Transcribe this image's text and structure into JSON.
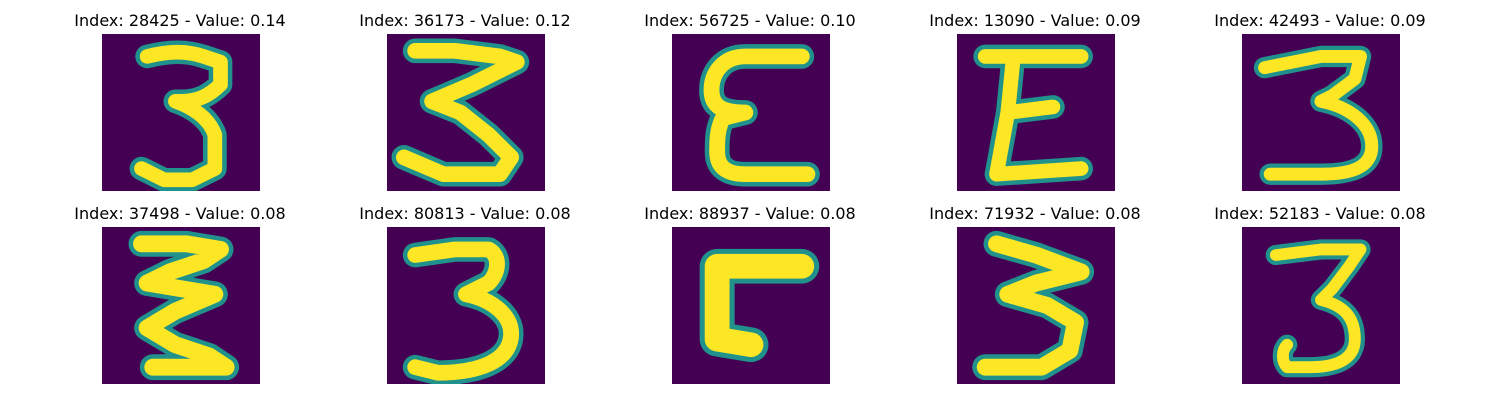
{
  "figure": {
    "colormap": {
      "background": "#440154",
      "edge_dark": "#31688e",
      "edge": "#21918c",
      "edge_light": "#5ec962",
      "ink": "#fde725"
    },
    "panels": [
      {
        "title": "Index: 28425 - Value: 0.14",
        "glyph": "three-narrow-icon"
      },
      {
        "title": "Index: 36173 - Value: 0.12",
        "glyph": "three-zigzag-icon"
      },
      {
        "title": "Index: 56725 - Value: 0.10",
        "glyph": "epsilon-icon"
      },
      {
        "title": "Index: 13090 - Value: 0.09",
        "glyph": "capital-e-icon"
      },
      {
        "title": "Index: 42493 - Value: 0.09",
        "glyph": "three-flat-top-icon"
      },
      {
        "title": "Index: 37498 - Value: 0.08",
        "glyph": "three-zigzag-bold-icon"
      },
      {
        "title": "Index: 80813 - Value: 0.08",
        "glyph": "three-round-icon"
      },
      {
        "title": "Index: 88937 - Value: 0.08",
        "glyph": "c-shape-icon"
      },
      {
        "title": "Index: 71932 - Value: 0.08",
        "glyph": "three-angular-icon"
      },
      {
        "title": "Index: 52183 - Value: 0.08",
        "glyph": "three-thin-icon"
      }
    ]
  }
}
